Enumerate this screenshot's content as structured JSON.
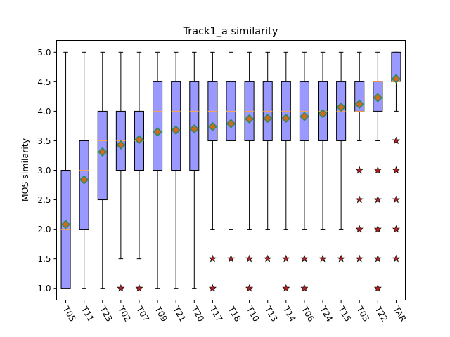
{
  "chart_data": {
    "type": "box",
    "title": "Track1_a similarity",
    "xlabel": "",
    "ylabel": "MOS similarity",
    "ylim": [
      0.8,
      5.2
    ],
    "yticks": [
      1.0,
      1.5,
      2.0,
      2.5,
      3.0,
      3.5,
      4.0,
      4.5,
      5.0
    ],
    "ytick_labels": [
      "1.0",
      "1.5",
      "2.0",
      "2.5",
      "3.0",
      "3.5",
      "4.0",
      "4.5",
      "5.0"
    ],
    "grid": false,
    "colors": {
      "box_fill": "#9999ff",
      "median": "#ffa64d",
      "mean_marker": "#2e8b57",
      "mean_border": "#d2691e",
      "outlier_fill": "#b22222"
    },
    "boxes": [
      {
        "label": "T05",
        "whisker_low": 1.0,
        "q1": 1.0,
        "median": 2.0,
        "q3": 3.0,
        "whisker_high": 5.0,
        "mean": 2.08,
        "outliers": []
      },
      {
        "label": "T11",
        "whisker_low": 1.0,
        "q1": 2.0,
        "median": 3.0,
        "q3": 3.5,
        "whisker_high": 5.0,
        "mean": 2.84,
        "outliers": []
      },
      {
        "label": "T23",
        "whisker_low": 1.0,
        "q1": 2.5,
        "median": 3.5,
        "q3": 4.0,
        "whisker_high": 5.0,
        "mean": 3.31,
        "outliers": []
      },
      {
        "label": "T02",
        "whisker_low": 1.5,
        "q1": 3.0,
        "median": 3.5,
        "q3": 4.0,
        "whisker_high": 5.0,
        "mean": 3.43,
        "outliers": [
          1.0
        ]
      },
      {
        "label": "T07",
        "whisker_low": 1.5,
        "q1": 3.0,
        "median": 3.5,
        "q3": 4.0,
        "whisker_high": 5.0,
        "mean": 3.52,
        "outliers": [
          1.0
        ]
      },
      {
        "label": "T09",
        "whisker_low": 1.0,
        "q1": 3.0,
        "median": 4.0,
        "q3": 4.5,
        "whisker_high": 5.0,
        "mean": 3.65,
        "outliers": []
      },
      {
        "label": "T21",
        "whisker_low": 1.0,
        "q1": 3.0,
        "median": 4.0,
        "q3": 4.5,
        "whisker_high": 5.0,
        "mean": 3.68,
        "outliers": []
      },
      {
        "label": "T20",
        "whisker_low": 1.0,
        "q1": 3.0,
        "median": 4.0,
        "q3": 4.5,
        "whisker_high": 5.0,
        "mean": 3.7,
        "outliers": []
      },
      {
        "label": "T17",
        "whisker_low": 2.0,
        "q1": 3.5,
        "median": 4.0,
        "q3": 4.5,
        "whisker_high": 5.0,
        "mean": 3.74,
        "outliers": [
          1.5,
          1.0
        ]
      },
      {
        "label": "T18",
        "whisker_low": 2.0,
        "q1": 3.5,
        "median": 4.0,
        "q3": 4.5,
        "whisker_high": 5.0,
        "mean": 3.79,
        "outliers": [
          1.5
        ]
      },
      {
        "label": "T10",
        "whisker_low": 2.0,
        "q1": 3.5,
        "median": 4.0,
        "q3": 4.5,
        "whisker_high": 5.0,
        "mean": 3.87,
        "outliers": [
          1.5,
          1.0
        ]
      },
      {
        "label": "T13",
        "whisker_low": 2.0,
        "q1": 3.5,
        "median": 4.0,
        "q3": 4.5,
        "whisker_high": 5.0,
        "mean": 3.88,
        "outliers": [
          1.5
        ]
      },
      {
        "label": "T14",
        "whisker_low": 2.0,
        "q1": 3.5,
        "median": 4.0,
        "q3": 4.5,
        "whisker_high": 5.0,
        "mean": 3.88,
        "outliers": [
          1.5,
          1.0
        ]
      },
      {
        "label": "T06",
        "whisker_low": 2.0,
        "q1": 3.5,
        "median": 4.0,
        "q3": 4.5,
        "whisker_high": 5.0,
        "mean": 3.91,
        "outliers": [
          1.5,
          1.0
        ]
      },
      {
        "label": "T24",
        "whisker_low": 2.0,
        "q1": 3.5,
        "median": 4.0,
        "q3": 4.5,
        "whisker_high": 5.0,
        "mean": 3.96,
        "outliers": [
          1.5
        ]
      },
      {
        "label": "T15",
        "whisker_low": 2.0,
        "q1": 3.5,
        "median": 4.0,
        "q3": 4.5,
        "whisker_high": 5.0,
        "mean": 4.07,
        "outliers": [
          1.5
        ]
      },
      {
        "label": "T03",
        "whisker_low": 3.5,
        "q1": 4.0,
        "median": 4.0,
        "q3": 4.5,
        "whisker_high": 5.0,
        "mean": 4.12,
        "outliers": [
          3.0,
          2.5,
          2.0,
          1.5
        ]
      },
      {
        "label": "T22",
        "whisker_low": 3.5,
        "q1": 4.0,
        "median": 4.5,
        "q3": 4.5,
        "whisker_high": 5.0,
        "mean": 4.23,
        "outliers": [
          3.0,
          2.5,
          2.0,
          1.5,
          1.0
        ]
      },
      {
        "label": "TAR",
        "whisker_low": 4.0,
        "q1": 4.5,
        "median": 4.5,
        "q3": 5.0,
        "whisker_high": 5.0,
        "mean": 4.55,
        "outliers": [
          3.5,
          3.0,
          2.5,
          2.0,
          1.5
        ]
      }
    ]
  }
}
